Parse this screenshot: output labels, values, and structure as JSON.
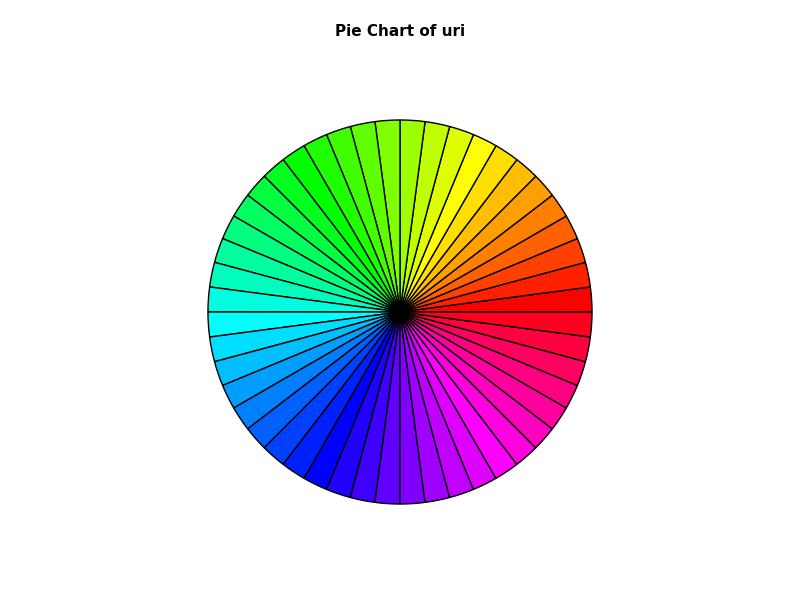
{
  "chart_data": {
    "type": "pie",
    "title": "Pie Chart of uri",
    "categories": [
      null,
      null,
      null,
      null,
      null,
      null,
      null,
      null,
      null,
      null,
      null,
      null,
      null,
      null,
      null,
      null,
      null,
      null,
      null,
      null,
      null,
      null,
      null,
      null,
      null,
      null,
      null,
      null,
      null,
      null,
      null,
      null,
      null,
      null,
      null,
      null,
      null,
      null,
      null,
      null,
      null,
      null,
      null,
      null,
      null,
      null,
      null,
      null
    ],
    "values": [
      1,
      1,
      1,
      1,
      1,
      1,
      1,
      1,
      1,
      1,
      1,
      1,
      1,
      1,
      1,
      1,
      1,
      1,
      1,
      1,
      1,
      1,
      1,
      1,
      1,
      1,
      1,
      1,
      1,
      1,
      1,
      1,
      1,
      1,
      1,
      1,
      1,
      1,
      1,
      1,
      1,
      1,
      1,
      1,
      1,
      1,
      1,
      1
    ],
    "colors": [
      "#FF0000",
      "#FF2000",
      "#FF4000",
      "#FF6000",
      "#FF8000",
      "#FF9F00",
      "#FFBF00",
      "#FFDF00",
      "#FFFF00",
      "#DFFF00",
      "#BFFF00",
      "#9FFF00",
      "#80FF00",
      "#60FF00",
      "#40FF00",
      "#20FF00",
      "#00FF00",
      "#00FF20",
      "#00FF40",
      "#00FF60",
      "#00FF80",
      "#00FF9F",
      "#00FFBF",
      "#00FFDF",
      "#00FFFF",
      "#00DFFF",
      "#00BFFF",
      "#009FFF",
      "#0080FF",
      "#0060FF",
      "#0040FF",
      "#0020FF",
      "#0000FF",
      "#2000FF",
      "#4000FF",
      "#6000FF",
      "#8000FF",
      "#9F00FF",
      "#BF00FF",
      "#DF00FF",
      "#FF00FF",
      "#FF00DF",
      "#FF00BF",
      "#FF009F",
      "#FF0080",
      "#FF0060",
      "#FF0040",
      "#FF0020"
    ]
  }
}
